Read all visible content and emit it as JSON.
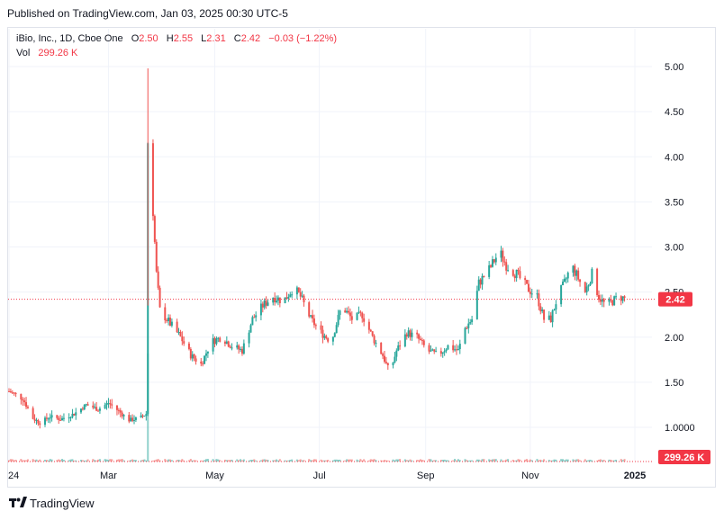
{
  "header": {
    "published": "Published on TradingView.com, Jan 03, 2025 00:30 UTC-5"
  },
  "legend": {
    "symbol": "iBio, Inc., 1D, Cboe One",
    "o_label": "O",
    "o_value": "2.50",
    "h_label": "H",
    "h_value": "2.55",
    "l_label": "L",
    "l_value": "2.31",
    "c_label": "C",
    "c_value": "2.42",
    "change": "−0.03 (−1.22%)",
    "vol_label": "Vol",
    "vol_value": "299.26 K"
  },
  "price_tag": "2.42",
  "volume_tag": "299.26 K",
  "footer": {
    "brand": "TradingView"
  },
  "colors": {
    "up": "#26a69a",
    "down": "#ef5350",
    "price_line": "#f23645",
    "grid": "#f0f3fa"
  },
  "chart_data": {
    "type": "candlestick",
    "symbol": "iBio, Inc.",
    "interval": "1D",
    "y_ticks": [
      "5.00",
      "4.50",
      "4.00",
      "3.50",
      "3.00",
      "2.50",
      "2.00",
      "1.50",
      "1.0000"
    ],
    "y_tick_values": [
      5.0,
      4.5,
      4.0,
      3.5,
      3.0,
      2.5,
      2.0,
      1.5,
      1.0
    ],
    "ylim": [
      0.8,
      5.1
    ],
    "x_ticks": [
      "24",
      "Mar",
      "May",
      "Jul",
      "Sep",
      "Nov",
      "2025"
    ],
    "x_tick_days": [
      0,
      58,
      120,
      181,
      243,
      304,
      365
    ],
    "last_close": 2.42,
    "last_volume": "299.26 K",
    "grid": true,
    "series": [
      {
        "day": 0,
        "close": 1.4
      },
      {
        "day": 8,
        "close": 1.32
      },
      {
        "day": 14,
        "close": 1.1
      },
      {
        "day": 18,
        "close": 1.05
      },
      {
        "day": 24,
        "close": 1.12
      },
      {
        "day": 30,
        "close": 1.09
      },
      {
        "day": 38,
        "close": 1.15
      },
      {
        "day": 45,
        "close": 1.25
      },
      {
        "day": 52,
        "close": 1.2
      },
      {
        "day": 58,
        "close": 1.27
      },
      {
        "day": 64,
        "close": 1.18
      },
      {
        "day": 70,
        "close": 1.08
      },
      {
        "day": 76,
        "close": 1.1
      },
      {
        "day": 80,
        "close": 1.15
      },
      {
        "day": 81,
        "close": 3.85
      },
      {
        "day": 82,
        "close": 4.15
      },
      {
        "day": 84,
        "close": 3.4
      },
      {
        "day": 86,
        "close": 2.7
      },
      {
        "day": 88,
        "close": 2.3
      },
      {
        "day": 92,
        "close": 2.2
      },
      {
        "day": 100,
        "close": 2.0
      },
      {
        "day": 106,
        "close": 1.8
      },
      {
        "day": 112,
        "close": 1.7
      },
      {
        "day": 118,
        "close": 1.95
      },
      {
        "day": 124,
        "close": 2.0
      },
      {
        "day": 130,
        "close": 1.9
      },
      {
        "day": 136,
        "close": 1.85
      },
      {
        "day": 142,
        "close": 2.2
      },
      {
        "day": 148,
        "close": 2.35
      },
      {
        "day": 154,
        "close": 2.45
      },
      {
        "day": 160,
        "close": 2.4
      },
      {
        "day": 166,
        "close": 2.55
      },
      {
        "day": 170,
        "close": 2.45
      },
      {
        "day": 176,
        "close": 2.2
      },
      {
        "day": 182,
        "close": 2.05
      },
      {
        "day": 188,
        "close": 1.95
      },
      {
        "day": 194,
        "close": 2.35
      },
      {
        "day": 200,
        "close": 2.2
      },
      {
        "day": 206,
        "close": 2.25
      },
      {
        "day": 212,
        "close": 2.0
      },
      {
        "day": 218,
        "close": 1.8
      },
      {
        "day": 222,
        "close": 1.6
      },
      {
        "day": 226,
        "close": 1.85
      },
      {
        "day": 232,
        "close": 2.05
      },
      {
        "day": 238,
        "close": 2.0
      },
      {
        "day": 244,
        "close": 1.85
      },
      {
        "day": 250,
        "close": 1.8
      },
      {
        "day": 256,
        "close": 1.9
      },
      {
        "day": 262,
        "close": 1.85
      },
      {
        "day": 266,
        "close": 2.1
      },
      {
        "day": 270,
        "close": 2.2
      },
      {
        "day": 274,
        "close": 2.6
      },
      {
        "day": 280,
        "close": 2.75
      },
      {
        "day": 286,
        "close": 2.95
      },
      {
        "day": 290,
        "close": 2.8
      },
      {
        "day": 296,
        "close": 2.7
      },
      {
        "day": 302,
        "close": 2.55
      },
      {
        "day": 308,
        "close": 2.45
      },
      {
        "day": 312,
        "close": 2.2
      },
      {
        "day": 316,
        "close": 2.2
      },
      {
        "day": 320,
        "close": 2.45
      },
      {
        "day": 324,
        "close": 2.6
      },
      {
        "day": 328,
        "close": 2.8
      },
      {
        "day": 332,
        "close": 2.65
      },
      {
        "day": 336,
        "close": 2.5
      },
      {
        "day": 340,
        "close": 2.7
      },
      {
        "day": 344,
        "close": 2.45
      },
      {
        "day": 348,
        "close": 2.35
      },
      {
        "day": 352,
        "close": 2.4
      },
      {
        "day": 356,
        "close": 2.45
      },
      {
        "day": 360,
        "close": 2.42
      }
    ],
    "volume_spike": {
      "day": 81,
      "value": "high"
    }
  }
}
